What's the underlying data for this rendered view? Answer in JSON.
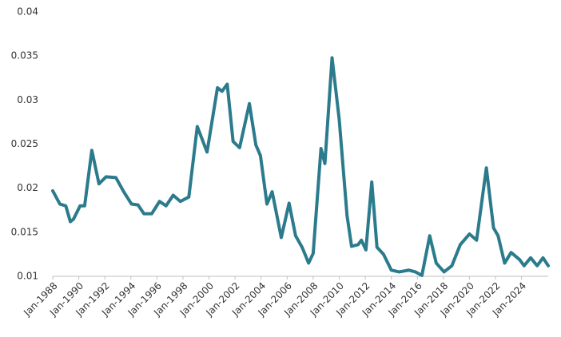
{
  "chart_data": {
    "type": "line",
    "x": [
      1988.0,
      1988.55,
      1989.0,
      1989.35,
      1989.6,
      1990.1,
      1990.45,
      1991.0,
      1991.55,
      1992.1,
      1992.85,
      1993.45,
      1994.05,
      1994.55,
      1995.0,
      1995.6,
      1996.2,
      1996.7,
      1997.25,
      1997.8,
      1998.45,
      1999.1,
      1999.85,
      2000.65,
      2001.0,
      2001.4,
      2001.85,
      2002.35,
      2003.1,
      2003.6,
      2003.95,
      2004.45,
      2004.85,
      2005.55,
      2006.15,
      2006.65,
      2007.15,
      2007.65,
      2008.0,
      2008.6,
      2008.9,
      2009.45,
      2010.0,
      2010.6,
      2010.95,
      2011.45,
      2011.7,
      2012.05,
      2012.5,
      2012.9,
      2013.4,
      2014.0,
      2014.6,
      2015.35,
      2015.85,
      2016.35,
      2016.95,
      2017.45,
      2018.05,
      2018.65,
      2019.3,
      2020.0,
      2020.55,
      2021.3,
      2021.85,
      2022.2,
      2022.7,
      2023.2,
      2023.85,
      2024.2,
      2024.7,
      2025.2,
      2025.65,
      2026.05
    ],
    "series": [
      {
        "color": "#2b7b8c",
        "values": [
          0.0197,
          0.0182,
          0.018,
          0.0162,
          0.0165,
          0.018,
          0.018,
          0.0243,
          0.0205,
          0.0213,
          0.0212,
          0.0196,
          0.0182,
          0.0181,
          0.0171,
          0.0171,
          0.0185,
          0.018,
          0.0192,
          0.0185,
          0.019,
          0.027,
          0.0241,
          0.0314,
          0.031,
          0.0318,
          0.0253,
          0.0246,
          0.0296,
          0.0249,
          0.0237,
          0.0182,
          0.0196,
          0.0144,
          0.0183,
          0.0146,
          0.0133,
          0.0115,
          0.0126,
          0.0245,
          0.0228,
          0.0348,
          0.0278,
          0.0169,
          0.0134,
          0.0136,
          0.0141,
          0.013,
          0.0207,
          0.0133,
          0.0125,
          0.0107,
          0.0105,
          0.0107,
          0.0105,
          0.0101,
          0.0146,
          0.0115,
          0.0105,
          0.0112,
          0.0136,
          0.0148,
          0.0141,
          0.0223,
          0.0155,
          0.0146,
          0.0115,
          0.0127,
          0.0119,
          0.0112,
          0.0121,
          0.0112,
          0.0121,
          0.0112
        ]
      }
    ],
    "xlim": [
      1988,
      2026.05
    ],
    "xticks": [
      {
        "value": 1988,
        "label": "Jan-1988"
      },
      {
        "value": 1990,
        "label": "Jan-1990"
      },
      {
        "value": 1992,
        "label": "Jan-1992"
      },
      {
        "value": 1994,
        "label": "Jan-1994"
      },
      {
        "value": 1996,
        "label": "Jan-1996"
      },
      {
        "value": 1998,
        "label": "Jan-1998"
      },
      {
        "value": 2000,
        "label": "Jan-2000"
      },
      {
        "value": 2002,
        "label": "Jan-2002"
      },
      {
        "value": 2004,
        "label": "Jan-2004"
      },
      {
        "value": 2006,
        "label": "Jan-2006"
      },
      {
        "value": 2008,
        "label": "Jan-2008"
      },
      {
        "value": 2010,
        "label": "Jan-2010"
      },
      {
        "value": 2012,
        "label": "Jan-2012"
      },
      {
        "value": 2014,
        "label": "Jan-2014"
      },
      {
        "value": 2016,
        "label": "Jan-2016"
      },
      {
        "value": 2018,
        "label": "Jan-2018"
      },
      {
        "value": 2020,
        "label": "Jan-2020"
      },
      {
        "value": 2022,
        "label": "Jan-2022"
      },
      {
        "value": 2024,
        "label": "Jan-2024"
      }
    ],
    "ylim": [
      0.01,
      0.04
    ],
    "yticks": [
      0.01,
      0.015,
      0.02,
      0.025,
      0.03,
      0.035,
      0.04
    ],
    "grid": false
  }
}
